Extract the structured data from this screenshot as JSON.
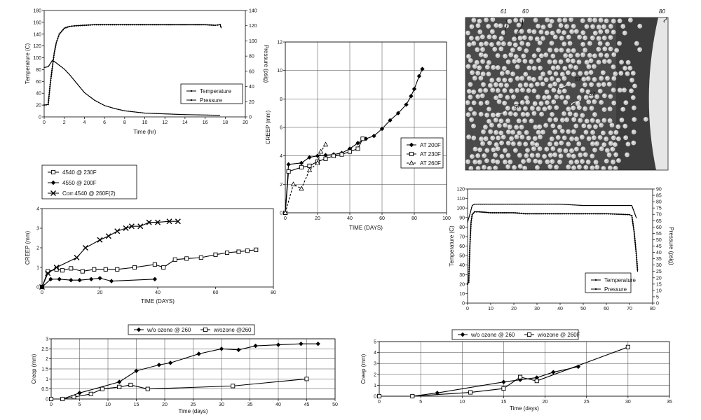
{
  "chart_data": [
    {
      "type": "line",
      "xlabel": "Time (hr)",
      "ylabel": "Temperature (C)",
      "y2label": "Pressure (psig)",
      "xlim": [
        0,
        20
      ],
      "ylim": [
        0,
        180
      ],
      "y2lim": [
        0,
        140
      ],
      "xticks": [
        "0",
        "2",
        "4",
        "6",
        "8",
        "10",
        "12",
        "14",
        "16",
        "18",
        "20"
      ],
      "yticks": [
        "0",
        "20",
        "40",
        "60",
        "80",
        "100",
        "120",
        "140",
        "160",
        "180"
      ],
      "y2ticks": [
        "0",
        "20",
        "40",
        "60",
        "80",
        "100",
        "120",
        "140"
      ],
      "legend": {
        "entries": [
          "Temperature",
          "Pressure"
        ],
        "placement": "lower-right"
      },
      "series": [
        {
          "name": "Temperature",
          "axis": "y",
          "points": [
            [
              0,
              20
            ],
            [
              0.4,
              21
            ],
            [
              0.6,
              55
            ],
            [
              0.8,
              82
            ],
            [
              1,
              108
            ],
            [
              1.2,
              125
            ],
            [
              1.5,
              140
            ],
            [
              2,
              150
            ],
            [
              2.5,
              153
            ],
            [
              3,
              154
            ],
            [
              4,
              155
            ],
            [
              5,
              156
            ],
            [
              6,
              156
            ],
            [
              8,
              156
            ],
            [
              10,
              156
            ],
            [
              12,
              156
            ],
            [
              14,
              156
            ],
            [
              16,
              156
            ],
            [
              17,
              155
            ],
            [
              17.5,
              156
            ],
            [
              17.6,
              150
            ]
          ]
        },
        {
          "name": "Pressure",
          "axis": "y2",
          "points": [
            [
              0,
              65
            ],
            [
              0.4,
              66
            ],
            [
              0.6,
              70
            ],
            [
              0.8,
              74
            ],
            [
              1,
              73
            ],
            [
              1.5,
              68
            ],
            [
              2,
              63
            ],
            [
              2.5,
              56
            ],
            [
              3,
              48
            ],
            [
              4,
              32
            ],
            [
              5,
              22
            ],
            [
              6,
              15
            ],
            [
              7,
              11
            ],
            [
              8,
              8
            ],
            [
              10,
              5
            ],
            [
              12,
              4
            ],
            [
              14,
              3
            ],
            [
              16,
              2.5
            ],
            [
              17.5,
              2
            ]
          ]
        }
      ]
    },
    {
      "type": "line",
      "xlabel": "TIME (DAYS)",
      "ylabel": "CREEP (mm)",
      "xlim": [
        0,
        100
      ],
      "ylim": [
        0,
        12
      ],
      "xticks": [
        "0",
        "20",
        "40",
        "60",
        "80",
        "100"
      ],
      "yticks": [
        "0",
        "2",
        "4",
        "6",
        "8",
        "10",
        "12"
      ],
      "legend": {
        "entries": [
          "AT 200F",
          "AT 230F",
          "AT 260F"
        ],
        "placement": "lower-right"
      },
      "series": [
        {
          "name": "AT 200F",
          "marker": "diamond",
          "points": [
            [
              0,
              0
            ],
            [
              2,
              3.4
            ],
            [
              10,
              3.5
            ],
            [
              15,
              3.9
            ],
            [
              20,
              4
            ],
            [
              25,
              4.05
            ],
            [
              30,
              4.1
            ],
            [
              35,
              4.2
            ],
            [
              40,
              4.5
            ],
            [
              45,
              4.9
            ],
            [
              50,
              5.2
            ],
            [
              55,
              5.4
            ],
            [
              60,
              5.9
            ],
            [
              65,
              6.5
            ],
            [
              70,
              7
            ],
            [
              75,
              7.6
            ],
            [
              78,
              8.2
            ],
            [
              80,
              8.7
            ],
            [
              83,
              9.6
            ],
            [
              85,
              10.1
            ]
          ]
        },
        {
          "name": "AT 230F",
          "marker": "square",
          "points": [
            [
              0,
              0
            ],
            [
              2,
              2.9
            ],
            [
              10,
              3.2
            ],
            [
              15,
              3.3
            ],
            [
              20,
              3.6
            ],
            [
              25,
              3.8
            ],
            [
              30,
              4
            ],
            [
              35,
              4.1
            ],
            [
              40,
              4.3
            ],
            [
              45,
              4.5
            ],
            [
              48,
              5.2
            ]
          ]
        },
        {
          "name": "AT 260F",
          "marker": "triangle",
          "points": [
            [
              0,
              0
            ],
            [
              5,
              2
            ],
            [
              10,
              1.7
            ],
            [
              15,
              3
            ],
            [
              20,
              3.5
            ],
            [
              22,
              4.3
            ],
            [
              25,
              4.8
            ]
          ]
        }
      ]
    },
    {
      "type": "line",
      "xlabel": "TIME (DAYS)",
      "ylabel": "CREEP (mm)",
      "xlim": [
        0,
        80
      ],
      "ylim": [
        0,
        4
      ],
      "xticks": [
        "0",
        "20",
        "40",
        "60",
        "80"
      ],
      "yticks": [
        "0",
        "1",
        "2",
        "3",
        "4"
      ],
      "legend": {
        "entries": [
          "4540 @ 230F",
          "4550 @ 200F",
          "Corr.4540 @ 260F(2)"
        ],
        "placement": "top-left"
      },
      "series": [
        {
          "name": "4540 @ 230F",
          "marker": "square",
          "points": [
            [
              0,
              0
            ],
            [
              2,
              0.8
            ],
            [
              5,
              0.9
            ],
            [
              7,
              0.85
            ],
            [
              10,
              0.95
            ],
            [
              14,
              0.8
            ],
            [
              18,
              0.9
            ],
            [
              22,
              0.9
            ],
            [
              26,
              0.9
            ],
            [
              32,
              1
            ],
            [
              39,
              1.15
            ],
            [
              42,
              1
            ],
            [
              46,
              1.4
            ],
            [
              50,
              1.45
            ],
            [
              55,
              1.5
            ],
            [
              60,
              1.65
            ],
            [
              64,
              1.75
            ],
            [
              68,
              1.8
            ],
            [
              71,
              1.85
            ],
            [
              74,
              1.9
            ]
          ]
        },
        {
          "name": "4550 @ 200F",
          "marker": "diamond",
          "points": [
            [
              0,
              0
            ],
            [
              3,
              0.4
            ],
            [
              6,
              0.4
            ],
            [
              10,
              0.35
            ],
            [
              13,
              0.35
            ],
            [
              17,
              0.4
            ],
            [
              20,
              0.45
            ],
            [
              24,
              0.3
            ],
            [
              39,
              0.4
            ]
          ]
        },
        {
          "name": "Corr.4540 @ 260F(2)",
          "marker": "x",
          "points": [
            [
              0,
              0
            ],
            [
              2,
              0.7
            ],
            [
              5,
              1
            ],
            [
              12,
              1.5
            ],
            [
              15,
              2
            ],
            [
              20,
              2.4
            ],
            [
              23,
              2.6
            ],
            [
              26,
              2.85
            ],
            [
              29,
              3
            ],
            [
              31,
              3.1
            ],
            [
              34,
              3.1
            ],
            [
              37,
              3.3
            ],
            [
              40,
              3.3
            ],
            [
              44,
              3.35
            ],
            [
              47,
              3.35
            ]
          ]
        }
      ]
    },
    {
      "type": "line",
      "xlabel": "",
      "ylabel": "Temperature (C)",
      "y2label": "Pressure (psig)",
      "xlim": [
        0,
        80
      ],
      "ylim": [
        0,
        120
      ],
      "y2lim": [
        0,
        90
      ],
      "xticks": [
        "0",
        "10",
        "20",
        "30",
        "40",
        "50",
        "60",
        "70",
        "80"
      ],
      "yticks": [
        "0",
        "10",
        "20",
        "30",
        "40",
        "50",
        "60",
        "70",
        "80",
        "90",
        "100",
        "110",
        "120"
      ],
      "y2ticks": [
        "0",
        "5",
        "10",
        "15",
        "20",
        "25",
        "30",
        "35",
        "40",
        "45",
        "50",
        "55",
        "60",
        "65",
        "70",
        "75",
        "80",
        "85",
        "90"
      ],
      "legend": {
        "entries": [
          "Temperature",
          "Pressure"
        ],
        "placement": "lower-right"
      },
      "series": [
        {
          "name": "Temperature",
          "axis": "y",
          "points": [
            [
              0,
              20
            ],
            [
              0.5,
              22
            ],
            [
              1,
              60
            ],
            [
              1.5,
              85
            ],
            [
              2,
              93
            ],
            [
              3,
              96
            ],
            [
              5,
              96
            ],
            [
              10,
              95
            ],
            [
              15,
              95
            ],
            [
              20,
              95
            ],
            [
              25,
              94
            ],
            [
              30,
              94
            ],
            [
              40,
              94
            ],
            [
              50,
              94
            ],
            [
              60,
              94
            ],
            [
              70,
              93
            ],
            [
              71,
              92
            ],
            [
              72,
              75
            ],
            [
              73,
              50
            ],
            [
              73.5,
              33
            ]
          ]
        },
        {
          "name": "Pressure",
          "axis": "y2",
          "points": [
            [
              0,
              64
            ],
            [
              1,
              70
            ],
            [
              2,
              77
            ],
            [
              3,
              78
            ],
            [
              10,
              78
            ],
            [
              20,
              78
            ],
            [
              30,
              78
            ],
            [
              40,
              78
            ],
            [
              50,
              77
            ],
            [
              60,
              77
            ],
            [
              70,
              77
            ],
            [
              71,
              77
            ],
            [
              72,
              72
            ],
            [
              73,
              67
            ]
          ]
        }
      ]
    },
    {
      "type": "line",
      "xlabel": "Time (days)",
      "ylabel": "Creep (mm)",
      "xlim": [
        0,
        50
      ],
      "ylim": [
        0,
        3
      ],
      "xticks": [
        "0",
        "5",
        "10",
        "15",
        "20",
        "25",
        "30",
        "35",
        "40",
        "45",
        "50"
      ],
      "yticks": [
        "0",
        "0.5",
        "1",
        "1.5",
        "2",
        "2.5",
        "3"
      ],
      "legend": {
        "entries": [
          "w/o ozone @ 260",
          "w/ozone @260"
        ],
        "placement": "top"
      },
      "series": [
        {
          "name": "w/o ozone @ 260",
          "marker": "diamond",
          "points": [
            [
              0,
              0
            ],
            [
              2,
              0
            ],
            [
              5,
              0.3
            ],
            [
              12,
              0.85
            ],
            [
              15,
              1.4
            ],
            [
              19,
              1.7
            ],
            [
              21,
              1.8
            ],
            [
              26,
              2.25
            ],
            [
              30,
              2.5
            ],
            [
              33,
              2.45
            ],
            [
              36,
              2.65
            ],
            [
              40,
              2.7
            ],
            [
              44,
              2.75
            ],
            [
              47,
              2.75
            ]
          ]
        },
        {
          "name": "w/ozone @260",
          "marker": "square",
          "points": [
            [
              0,
              0
            ],
            [
              2,
              0
            ],
            [
              4,
              0.1
            ],
            [
              7,
              0.25
            ],
            [
              9,
              0.5
            ],
            [
              12,
              0.6
            ],
            [
              14,
              0.7
            ],
            [
              17,
              0.5
            ],
            [
              32,
              0.65
            ],
            [
              45,
              1
            ]
          ]
        }
      ]
    },
    {
      "type": "line",
      "xlabel": "Time (days)",
      "ylabel": "Creep (mm)",
      "xlim": [
        0,
        35
      ],
      "ylim": [
        0,
        5
      ],
      "xticks": [
        "0",
        "5",
        "10",
        "15",
        "20",
        "25",
        "30",
        "35"
      ],
      "yticks": [
        "0",
        "1",
        "2",
        "3",
        "4",
        "5"
      ],
      "legend": {
        "entries": [
          "w/o ozone @ 260",
          "w/ozone @ 260F"
        ],
        "placement": "top"
      },
      "series": [
        {
          "name": "w/o ozone @ 260",
          "marker": "diamond",
          "points": [
            [
              0,
              0
            ],
            [
              4,
              0
            ],
            [
              7,
              0.3
            ],
            [
              15,
              1.3
            ],
            [
              17,
              1.5
            ],
            [
              19,
              1.7
            ],
            [
              21,
              2.2
            ],
            [
              24,
              2.7
            ]
          ]
        },
        {
          "name": "w/ozone @ 260F",
          "marker": "square",
          "points": [
            [
              0,
              0
            ],
            [
              4,
              0
            ],
            [
              11,
              0.35
            ],
            [
              15,
              0.7
            ],
            [
              17,
              1.75
            ],
            [
              19,
              1.4
            ],
            [
              30,
              4.5
            ]
          ]
        }
      ]
    }
  ],
  "photo": {
    "reference_labels": [
      "61",
      "60",
      "80",
      "57",
      "57",
      "57"
    ],
    "colors": {
      "background": "#4a4a4a",
      "fiber": "#c9c9c9",
      "edge": "#e6e6e6"
    }
  }
}
